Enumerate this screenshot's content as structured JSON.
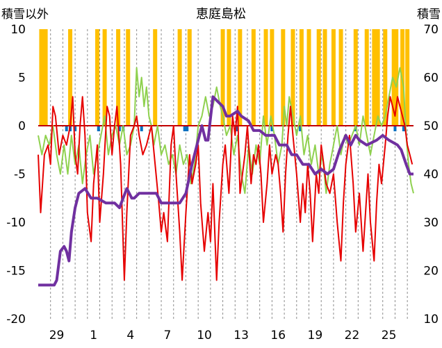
{
  "chart_data": {
    "type": "line",
    "title": "恵庭島松",
    "left_axis_label": "積雪以外",
    "right_axis_label": "積雪",
    "left_ylim": [
      -20,
      10
    ],
    "left_yticks": [
      10,
      5,
      0,
      -5,
      -10,
      -15,
      -20
    ],
    "right_ylim": [
      10,
      70
    ],
    "right_yticks": [
      70,
      60,
      50,
      40,
      30,
      20,
      10
    ],
    "x_range": [
      0,
      30.5
    ],
    "x_ticks": [
      {
        "x": 1.5,
        "label": "29"
      },
      {
        "x": 4.5,
        "label": "1"
      },
      {
        "x": 7.5,
        "label": "4"
      },
      {
        "x": 10.5,
        "label": "7"
      },
      {
        "x": 13.5,
        "label": "10"
      },
      {
        "x": 16.5,
        "label": "13"
      },
      {
        "x": 19.5,
        "label": "16"
      },
      {
        "x": 22.5,
        "label": "19"
      },
      {
        "x": 25.5,
        "label": "22"
      },
      {
        "x": 28.5,
        "label": "25"
      }
    ],
    "grid": "vertical dashed at day boundaries",
    "colors": {
      "temperature": "#e60000",
      "other": "#8fd14f",
      "snow_depth": "#7030a0",
      "precip_bars": "#ffc000",
      "snowfall_bars": "#0070c0",
      "zero_line": "#c00000",
      "grid": "#8c8c8c"
    },
    "series": [
      {
        "key": "snow_depth",
        "axis": "right",
        "points": [
          [
            0,
            17
          ],
          [
            1.3,
            17
          ],
          [
            1.5,
            18
          ],
          [
            1.8,
            24
          ],
          [
            2.1,
            25
          ],
          [
            2.3,
            24
          ],
          [
            2.5,
            22
          ],
          [
            2.7,
            28
          ],
          [
            3.0,
            33
          ],
          [
            3.3,
            36
          ],
          [
            3.8,
            37
          ],
          [
            4.3,
            35
          ],
          [
            4.8,
            35
          ],
          [
            5.5,
            34
          ],
          [
            6.2,
            34
          ],
          [
            6.6,
            33
          ],
          [
            7.2,
            37
          ],
          [
            7.6,
            35
          ],
          [
            7.8,
            35
          ],
          [
            8.2,
            36
          ],
          [
            9.2,
            36
          ],
          [
            9.6,
            36
          ],
          [
            10.0,
            34
          ],
          [
            10.5,
            34
          ],
          [
            11.5,
            34
          ],
          [
            12.0,
            36
          ],
          [
            12.5,
            42
          ],
          [
            12.9,
            46
          ],
          [
            13.3,
            50
          ],
          [
            13.6,
            47
          ],
          [
            13.8,
            47
          ],
          [
            14.2,
            56
          ],
          [
            14.6,
            55
          ],
          [
            15.0,
            54
          ],
          [
            15.3,
            52
          ],
          [
            15.6,
            52
          ],
          [
            16.2,
            53
          ],
          [
            16.5,
            52
          ],
          [
            17.1,
            51
          ],
          [
            17.5,
            49
          ],
          [
            18.0,
            49
          ],
          [
            18.5,
            48
          ],
          [
            19.2,
            48
          ],
          [
            19.6,
            46
          ],
          [
            20.2,
            46
          ],
          [
            20.6,
            44
          ],
          [
            21.0,
            44
          ],
          [
            21.5,
            42
          ],
          [
            22.0,
            42
          ],
          [
            22.5,
            40
          ],
          [
            23.0,
            41
          ],
          [
            23.5,
            40
          ],
          [
            24.0,
            41
          ],
          [
            24.5,
            45
          ],
          [
            25.0,
            48
          ],
          [
            25.4,
            46
          ],
          [
            25.8,
            48
          ],
          [
            26.1,
            47
          ],
          [
            26.7,
            46
          ],
          [
            27.5,
            47
          ],
          [
            28.0,
            48
          ],
          [
            28.5,
            47
          ],
          [
            29.2,
            46
          ],
          [
            29.5,
            45
          ],
          [
            29.9,
            42
          ],
          [
            30.2,
            40
          ],
          [
            30.5,
            40
          ]
        ]
      },
      {
        "key": "temperature",
        "axis": "left",
        "points": [
          [
            0,
            -3
          ],
          [
            0.2,
            -9
          ],
          [
            0.5,
            -3
          ],
          [
            0.8,
            -2
          ],
          [
            1.0,
            -4
          ],
          [
            1.2,
            2
          ],
          [
            1.4,
            1
          ],
          [
            1.7,
            -3
          ],
          [
            2.0,
            -1
          ],
          [
            2.3,
            -2
          ],
          [
            2.6,
            0
          ],
          [
            2.8,
            3
          ],
          [
            3.0,
            -3
          ],
          [
            3.2,
            -5
          ],
          [
            3.4,
            0
          ],
          [
            3.6,
            3
          ],
          [
            3.8,
            -1
          ],
          [
            4.0,
            -9
          ],
          [
            4.3,
            -12
          ],
          [
            4.5,
            -6
          ],
          [
            4.8,
            -2
          ],
          [
            5.0,
            -10
          ],
          [
            5.3,
            -5
          ],
          [
            5.6,
            2
          ],
          [
            5.8,
            1
          ],
          [
            6.0,
            -3
          ],
          [
            6.2,
            0
          ],
          [
            6.4,
            2
          ],
          [
            6.7,
            -4
          ],
          [
            7.0,
            -16
          ],
          [
            7.2,
            -9
          ],
          [
            7.5,
            -1
          ],
          [
            7.8,
            0
          ],
          [
            8.0,
            1
          ],
          [
            8.2,
            -1
          ],
          [
            8.5,
            -3
          ],
          [
            8.8,
            -2
          ],
          [
            9.0,
            -1
          ],
          [
            9.2,
            0
          ],
          [
            9.5,
            -4
          ],
          [
            9.8,
            -8
          ],
          [
            10.0,
            -11
          ],
          [
            10.2,
            -9
          ],
          [
            10.5,
            -12
          ],
          [
            10.8,
            -2
          ],
          [
            11.0,
            0
          ],
          [
            11.2,
            -5
          ],
          [
            11.5,
            -11
          ],
          [
            11.7,
            -16
          ],
          [
            12.0,
            -9
          ],
          [
            12.3,
            -3
          ],
          [
            12.5,
            -6
          ],
          [
            12.8,
            -4
          ],
          [
            13.0,
            -2
          ],
          [
            13.2,
            -8
          ],
          [
            13.5,
            -13
          ],
          [
            13.8,
            -9
          ],
          [
            14.0,
            -12
          ],
          [
            14.2,
            -6
          ],
          [
            14.5,
            -16
          ],
          [
            14.7,
            -10
          ],
          [
            15.0,
            -4
          ],
          [
            15.2,
            -2
          ],
          [
            15.5,
            -7
          ],
          [
            15.8,
            1
          ],
          [
            16.0,
            -1
          ],
          [
            16.2,
            2
          ],
          [
            16.4,
            -7
          ],
          [
            16.6,
            -5
          ],
          [
            16.8,
            -3
          ],
          [
            17.0,
            0
          ],
          [
            17.3,
            -6
          ],
          [
            17.5,
            -3
          ],
          [
            17.7,
            -4
          ],
          [
            17.9,
            -2
          ],
          [
            18.1,
            -5
          ],
          [
            18.3,
            -10
          ],
          [
            18.6,
            -6
          ],
          [
            18.8,
            -2
          ],
          [
            19.0,
            -5
          ],
          [
            19.3,
            -3
          ],
          [
            19.5,
            -4
          ],
          [
            19.7,
            -7
          ],
          [
            19.9,
            -11
          ],
          [
            20.1,
            -5
          ],
          [
            20.3,
            -1
          ],
          [
            20.5,
            2
          ],
          [
            20.7,
            -1
          ],
          [
            21.0,
            -5
          ],
          [
            21.3,
            -10
          ],
          [
            21.5,
            -6
          ],
          [
            21.7,
            -9
          ],
          [
            21.9,
            -4
          ],
          [
            22.1,
            -7
          ],
          [
            22.3,
            -12
          ],
          [
            22.6,
            -5
          ],
          [
            22.8,
            -7
          ],
          [
            23.0,
            -2
          ],
          [
            23.2,
            -4
          ],
          [
            23.4,
            -6
          ],
          [
            23.7,
            -7
          ],
          [
            24.0,
            -5
          ],
          [
            24.3,
            -10
          ],
          [
            24.6,
            -14
          ],
          [
            24.8,
            -8
          ],
          [
            25.0,
            -4
          ],
          [
            25.3,
            -1
          ],
          [
            25.6,
            -6
          ],
          [
            25.8,
            -11
          ],
          [
            26.1,
            -7
          ],
          [
            26.4,
            -13
          ],
          [
            26.6,
            -9
          ],
          [
            26.8,
            -5
          ],
          [
            27.0,
            -10
          ],
          [
            27.3,
            -14
          ],
          [
            27.5,
            -8
          ],
          [
            27.7,
            -4
          ],
          [
            27.9,
            -6
          ],
          [
            28.2,
            -2
          ],
          [
            28.4,
            1
          ],
          [
            28.6,
            3
          ],
          [
            28.8,
            2
          ],
          [
            29.0,
            1
          ],
          [
            29.2,
            3
          ],
          [
            29.4,
            2
          ],
          [
            29.6,
            1
          ],
          [
            29.8,
            0
          ],
          [
            30.0,
            -2
          ],
          [
            30.2,
            -3
          ],
          [
            30.4,
            -4
          ]
        ]
      },
      {
        "key": "other",
        "axis": "left",
        "points": [
          [
            0,
            -1
          ],
          [
            0.3,
            -3
          ],
          [
            0.6,
            -1
          ],
          [
            0.9,
            -2
          ],
          [
            1.2,
            0
          ],
          [
            1.5,
            -3
          ],
          [
            1.8,
            -5
          ],
          [
            2.1,
            -2
          ],
          [
            2.4,
            -5
          ],
          [
            2.7,
            -1
          ],
          [
            3.0,
            -4
          ],
          [
            3.3,
            -2
          ],
          [
            3.6,
            -6
          ],
          [
            3.9,
            -3
          ],
          [
            4.2,
            -1
          ],
          [
            4.5,
            -5
          ],
          [
            4.8,
            -3
          ],
          [
            5.1,
            -1
          ],
          [
            5.4,
            1
          ],
          [
            5.7,
            -3
          ],
          [
            6.0,
            -1
          ],
          [
            6.3,
            0
          ],
          [
            6.6,
            -2
          ],
          [
            6.9,
            0
          ],
          [
            7.2,
            -3
          ],
          [
            7.5,
            -2
          ],
          [
            7.8,
            0
          ],
          [
            8.0,
            6
          ],
          [
            8.2,
            3
          ],
          [
            8.4,
            5
          ],
          [
            8.6,
            2
          ],
          [
            8.8,
            4
          ],
          [
            9.0,
            1
          ],
          [
            9.2,
            0
          ],
          [
            9.4,
            -2
          ],
          [
            9.7,
            0
          ],
          [
            10.0,
            -3
          ],
          [
            10.3,
            -2
          ],
          [
            10.6,
            -4
          ],
          [
            10.9,
            -3
          ],
          [
            11.2,
            -5
          ],
          [
            11.5,
            -2
          ],
          [
            11.8,
            -4
          ],
          [
            12.1,
            -3
          ],
          [
            12.4,
            -6
          ],
          [
            12.7,
            -4
          ],
          [
            13.0,
            0
          ],
          [
            13.3,
            1
          ],
          [
            13.6,
            3
          ],
          [
            13.9,
            1
          ],
          [
            14.2,
            2
          ],
          [
            14.5,
            4
          ],
          [
            14.8,
            2
          ],
          [
            15.0,
            1
          ],
          [
            15.3,
            -1
          ],
          [
            15.6,
            0
          ],
          [
            15.9,
            -3
          ],
          [
            16.2,
            -1
          ],
          [
            16.5,
            -5
          ],
          [
            16.8,
            -7
          ],
          [
            17.1,
            -2
          ],
          [
            17.4,
            -5
          ],
          [
            17.7,
            -2
          ],
          [
            18.0,
            -4
          ],
          [
            18.3,
            1
          ],
          [
            18.6,
            -2
          ],
          [
            18.9,
            1
          ],
          [
            19.2,
            -1
          ],
          [
            19.5,
            -4
          ],
          [
            19.8,
            -2
          ],
          [
            20.0,
            2
          ],
          [
            20.2,
            0
          ],
          [
            20.4,
            3
          ],
          [
            20.7,
            1
          ],
          [
            21.0,
            -1
          ],
          [
            21.3,
            1
          ],
          [
            21.6,
            -3
          ],
          [
            21.9,
            -1
          ],
          [
            22.2,
            -4
          ],
          [
            22.5,
            -2
          ],
          [
            22.8,
            -5
          ],
          [
            23.1,
            -3
          ],
          [
            23.4,
            -7
          ],
          [
            23.7,
            -4
          ],
          [
            24.0,
            -2
          ],
          [
            24.3,
            0
          ],
          [
            24.6,
            -3
          ],
          [
            24.9,
            -1
          ],
          [
            25.2,
            -2
          ],
          [
            25.5,
            -1
          ],
          [
            25.8,
            0
          ],
          [
            26.1,
            -2
          ],
          [
            26.4,
            1
          ],
          [
            26.7,
            -1
          ],
          [
            27.0,
            -3
          ],
          [
            27.3,
            -1
          ],
          [
            27.6,
            1
          ],
          [
            27.9,
            0
          ],
          [
            28.2,
            1
          ],
          [
            28.5,
            3
          ],
          [
            28.8,
            5
          ],
          [
            29.1,
            4
          ],
          [
            29.4,
            6
          ],
          [
            29.7,
            4
          ],
          [
            29.9,
            -1
          ],
          [
            30.1,
            -4
          ],
          [
            30.3,
            -6
          ],
          [
            30.5,
            -7
          ]
        ]
      }
    ],
    "precip_bars": [
      0.25,
      0.4,
      0.6,
      2.6,
      4.8,
      5.4,
      6.5,
      7.3,
      9.5,
      11.5,
      12.3,
      15.0,
      15.5,
      16.4,
      17.5,
      18.5,
      19.0,
      19.9,
      20.7,
      21.4,
      22.0,
      22.8,
      23.3,
      24.0,
      24.6,
      25.8,
      26.7,
      27.3,
      27.6,
      28.2,
      28.9,
      29.1,
      29.6,
      30.0
    ],
    "snowfall_bars": [
      2.3,
      2.6,
      3.0,
      4.9,
      6.6,
      6.9,
      8.4,
      11.9,
      12.1,
      16.1,
      19.0,
      21.3,
      25.8,
      29.0,
      29.7
    ]
  }
}
